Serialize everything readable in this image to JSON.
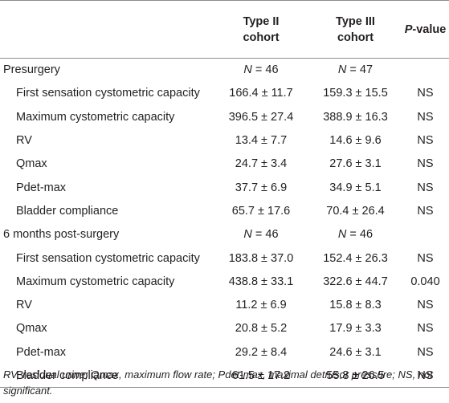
{
  "header": {
    "col1": "",
    "col2_line1": "Type II",
    "col2_line2": "cohort",
    "col3_line1": "Type III",
    "col3_line2": "cohort",
    "col4_italic": "P",
    "col4_rest": "-value"
  },
  "sections": [
    {
      "title": "Presurgery",
      "n_label": "N",
      "n2": " = 46",
      "n3": " = 47",
      "rows": [
        {
          "label": "First sensation cystometric capacity",
          "v2": "166.4 ± 11.7",
          "v3": "159.3 ± 15.5",
          "p": "NS"
        },
        {
          "label": "Maximum cystometric capacity",
          "v2": "396.5 ± 27.4",
          "v3": "388.9 ± 16.3",
          "p": "NS"
        },
        {
          "label": "RV",
          "v2": "13.4 ± 7.7",
          "v3": "14.6 ± 9.6",
          "p": "NS"
        },
        {
          "label": "Qmax",
          "v2": "24.7 ± 3.4",
          "v3": "27.6 ± 3.1",
          "p": "NS"
        },
        {
          "label": "Pdet-max",
          "v2": "37.7 ± 6.9",
          "v3": "34.9 ± 5.1",
          "p": "NS"
        },
        {
          "label": "Bladder compliance",
          "v2": "65.7 ± 17.6",
          "v3": "70.4 ± 26.4",
          "p": "NS"
        }
      ]
    },
    {
      "title": "6 months post-surgery",
      "n_label": "N",
      "n2": " = 46",
      "n3": " = 46",
      "rows": [
        {
          "label": "First sensation cystometric capacity",
          "v2": "183.8 ± 37.0",
          "v3": "152.4 ± 26.3",
          "p": "NS"
        },
        {
          "label": "Maximum cystometric capacity",
          "v2": "438.8 ± 33.1",
          "v3": "322.6 ± 44.7",
          "p": "0.040"
        },
        {
          "label": "RV",
          "v2": "11.2 ± 6.9",
          "v3": "15.8 ± 8.3",
          "p": "NS"
        },
        {
          "label": "Qmax",
          "v2": "20.8 ± 5.2",
          "v3": "17.9 ± 3.3",
          "p": "NS"
        },
        {
          "label": "Pdet-max",
          "v2": "29.2 ± 8.4",
          "v3": "24.6 ± 3.1",
          "p": "NS"
        },
        {
          "label": "Bladder compliance",
          "v2": "61.5 ± 17.2",
          "v3": "55.8 ± 26.5",
          "p": "NS"
        }
      ]
    }
  ],
  "footnote": "RV, residual urine; Qmax, maximum flow rate; Pdet-max, maximal detrusor pressure; NS, not significant."
}
